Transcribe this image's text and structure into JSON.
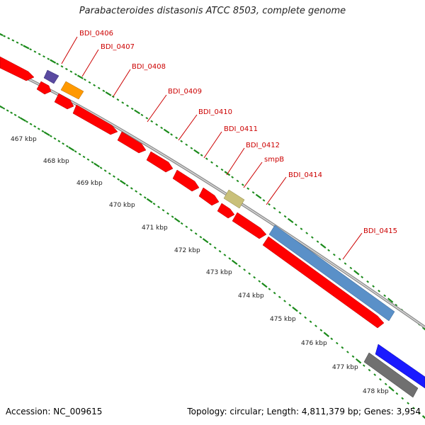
{
  "title": "Parabacteroides distasonis ATCC 8503, complete genome",
  "footer": {
    "accession": "Accession: NC_009615",
    "topology": "Topology: circular; Length: 4,811,379 bp; Genes: 3,954"
  },
  "colors": {
    "gene_default": "#ff0000",
    "backbone": "#9a9a9a",
    "grid_dots": "#1a8a1a",
    "label": "#cc0000"
  },
  "tick_labels": [
    "467 kbp",
    "468 kbp",
    "469 kbp",
    "470 kbp",
    "471 kbp",
    "472 kbp",
    "473 kbp",
    "474 kbp",
    "475 kbp",
    "476 kbp",
    "477 kbp",
    "478 kbp"
  ],
  "gene_labels": [
    "BDI_0406",
    "BDI_0407",
    "BDI_0408",
    "BDI_0409",
    "BDI_0410",
    "BDI_0411",
    "BDI_0412",
    "smpB",
    "BDI_0414",
    "BDI_0415"
  ]
}
